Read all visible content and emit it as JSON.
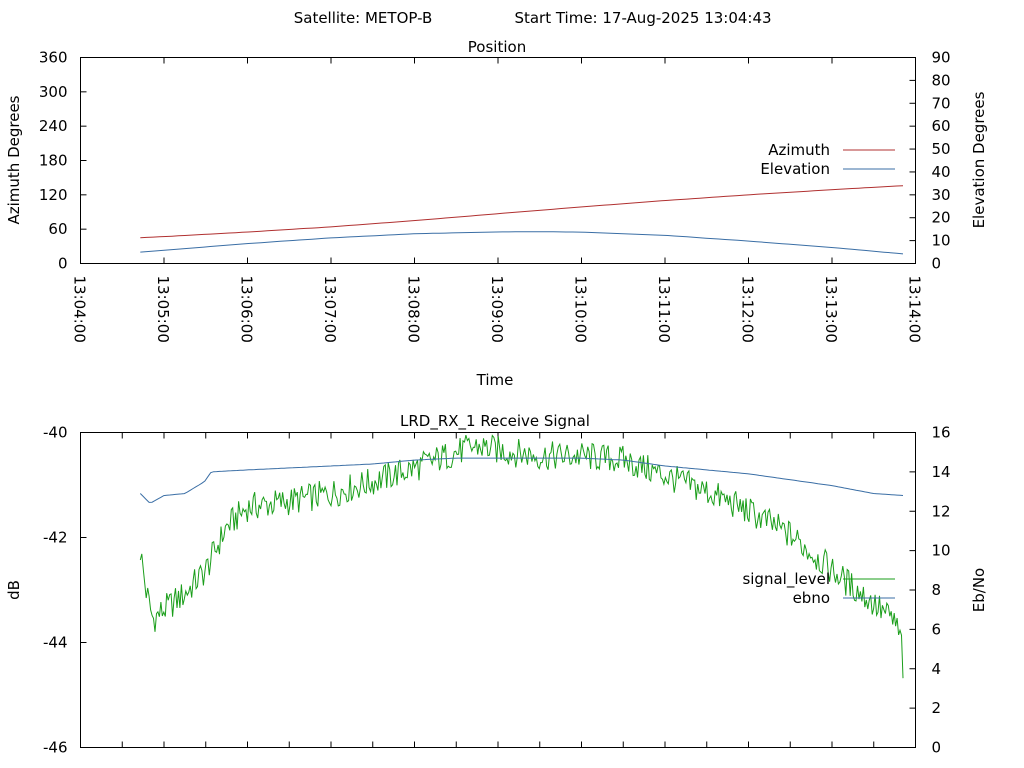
{
  "header": {
    "satellite": "Satellite: METOP-B",
    "start_time": "Start Time: 17-Aug-2025 13:04:43"
  },
  "chart_data": [
    {
      "type": "line",
      "title": "Position",
      "xlabel": "Time",
      "ylabel": "Azimuth Degrees",
      "y2label": "Elevation Degrees",
      "xlim": [
        "13:04:00",
        "13:14:00"
      ],
      "xticks": [
        "13:04:00",
        "13:05:00",
        "13:06:00",
        "13:07:00",
        "13:08:00",
        "13:09:00",
        "13:10:00",
        "13:11:00",
        "13:12:00",
        "13:13:00",
        "13:14:00"
      ],
      "ylim": [
        0,
        360
      ],
      "yticks": [
        0,
        60,
        120,
        180,
        240,
        300,
        360
      ],
      "y2lim": [
        0,
        90
      ],
      "y2ticks": [
        0,
        10,
        20,
        30,
        40,
        50,
        60,
        70,
        80,
        90
      ],
      "grid": false,
      "legend_position": "right",
      "series": [
        {
          "name": "Azimuth",
          "axis": "left",
          "color": "#b03030",
          "x": [
            "13:04:43",
            "13:05:00",
            "13:06:00",
            "13:07:00",
            "13:08:00",
            "13:09:00",
            "13:10:00",
            "13:11:00",
            "13:12:00",
            "13:13:00",
            "13:13:51"
          ],
          "values": [
            45,
            47,
            55,
            64,
            75,
            87,
            99,
            110,
            120,
            129,
            136
          ]
        },
        {
          "name": "Elevation",
          "axis": "right",
          "color": "#3a6ea5",
          "x": [
            "13:04:43",
            "13:05:00",
            "13:06:00",
            "13:07:00",
            "13:08:00",
            "13:09:00",
            "13:09:30",
            "13:10:00",
            "13:11:00",
            "13:12:00",
            "13:13:00",
            "13:13:51"
          ],
          "values": [
            5,
            5.8,
            8.7,
            11.2,
            13,
            13.8,
            13.9,
            13.7,
            12.3,
            9.8,
            7,
            4.2
          ]
        }
      ]
    },
    {
      "type": "line",
      "title": "LRD_RX_1 Receive Signal",
      "ylabel": "dB",
      "y2label": "Eb/No",
      "xlim": [
        "13:04:00",
        "13:14:00"
      ],
      "ylim": [
        -46,
        -40
      ],
      "yticks": [
        -46,
        -44,
        -42,
        -40
      ],
      "y2lim": [
        0,
        16
      ],
      "y2ticks": [
        0,
        2,
        4,
        6,
        8,
        10,
        12,
        14,
        16
      ],
      "grid": false,
      "legend_position": "right",
      "series": [
        {
          "name": "signal_level",
          "axis": "right",
          "color": "#1a9e1a",
          "x": [
            "13:04:43",
            "13:04:47",
            "13:04:52",
            "13:05:00",
            "13:05:15",
            "13:05:30",
            "13:05:45",
            "13:06:00",
            "13:06:30",
            "13:07:00",
            "13:07:30",
            "13:08:00",
            "13:08:30",
            "13:08:45",
            "13:09:00",
            "13:09:30",
            "13:10:00",
            "13:10:30",
            "13:11:00",
            "13:11:30",
            "13:12:00",
            "13:12:30",
            "13:13:00",
            "13:13:30",
            "13:13:45",
            "13:13:50",
            "13:13:51"
          ],
          "values": [
            10,
            8,
            6.5,
            7,
            7.8,
            9,
            11.2,
            12.2,
            12.5,
            12.9,
            13.5,
            14.2,
            15,
            15.3,
            15.1,
            14.8,
            14.8,
            14.6,
            13.8,
            13,
            12,
            10.8,
            9,
            7.3,
            6.4,
            5.3,
            4
          ]
        },
        {
          "name": "ebno",
          "axis": "right",
          "color": "#3a6ea5",
          "x": [
            "13:04:43",
            "13:04:50",
            "13:05:00",
            "13:05:15",
            "13:05:29",
            "13:05:34",
            "13:06:00",
            "13:06:30",
            "13:07:00",
            "13:07:30",
            "13:08:00",
            "13:08:30",
            "13:09:00",
            "13:09:30",
            "13:10:00",
            "13:10:30",
            "13:11:00",
            "13:11:30",
            "13:12:00",
            "13:12:30",
            "13:13:00",
            "13:13:30",
            "13:13:51"
          ],
          "values": [
            12.9,
            12.4,
            12.8,
            12.9,
            13.5,
            14,
            14.1,
            14.2,
            14.3,
            14.4,
            14.6,
            14.7,
            14.7,
            14.7,
            14.7,
            14.6,
            14.3,
            14.1,
            13.9,
            13.6,
            13.3,
            12.9,
            12.8
          ]
        }
      ]
    }
  ]
}
